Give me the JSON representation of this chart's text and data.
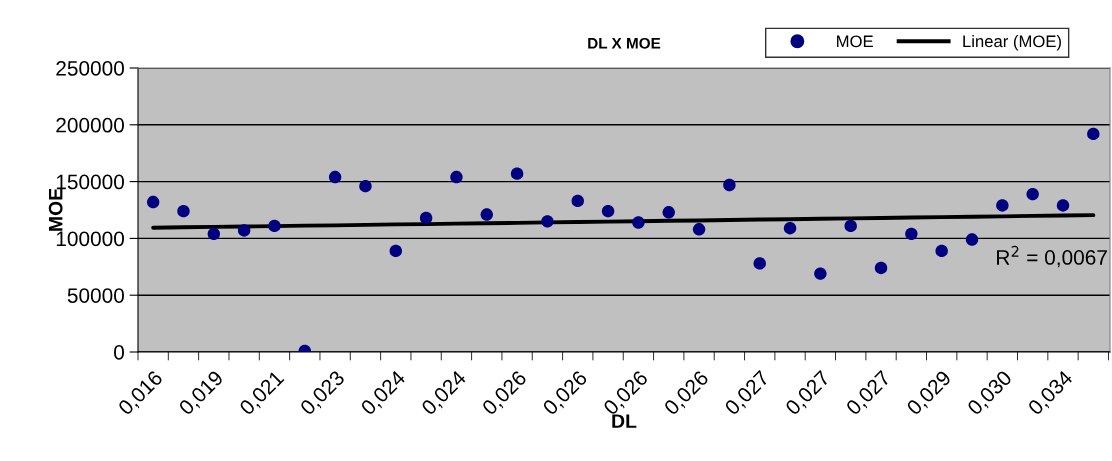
{
  "chart_data": {
    "type": "scatter",
    "title": "DL X MOE",
    "xlabel": "DL",
    "ylabel": "MOE",
    "categories": [
      "0,016",
      null,
      "0,019",
      null,
      "0,021",
      null,
      "0,023",
      null,
      "0,024",
      null,
      "0,024",
      null,
      "0,026",
      null,
      "0,026",
      null,
      "0,026",
      null,
      "0,026",
      null,
      "0,027",
      null,
      "0,027",
      null,
      "0,027",
      null,
      "0,029",
      null,
      "0,030",
      null,
      "0,034",
      null
    ],
    "series": [
      {
        "name": "MOE",
        "color": "#000080",
        "marker": "circle",
        "values": [
          132000,
          124000,
          104000,
          107000,
          111000,
          1000,
          154000,
          146000,
          89000,
          118000,
          154000,
          121000,
          157000,
          115000,
          133000,
          124000,
          114000,
          123000,
          108000,
          147000,
          78000,
          109000,
          69000,
          111000,
          74000,
          104000,
          89000,
          99000,
          129000,
          139000,
          129000,
          192000
        ]
      },
      {
        "name": "Linear (MOE)",
        "type": "line",
        "color": "#000000",
        "line_style": "solid",
        "marker": "none",
        "values": [
          109400,
          109800,
          110100,
          110500,
          110800,
          111200,
          111500,
          111900,
          112300,
          112600,
          113000,
          113300,
          113700,
          114100,
          114400,
          114800,
          115100,
          115500,
          115800,
          116200,
          116600,
          116900,
          117300,
          117600,
          118000,
          118400,
          118700,
          119100,
          119400,
          119800,
          120100,
          120500
        ]
      }
    ],
    "annotations": [
      "R$^{2}$ = 0,0067"
    ],
    "ylim": [
      0,
      250000
    ],
    "yticks": [
      0,
      50000,
      100000,
      150000,
      200000,
      250000
    ],
    "grid": "y",
    "legend": "top right"
  }
}
